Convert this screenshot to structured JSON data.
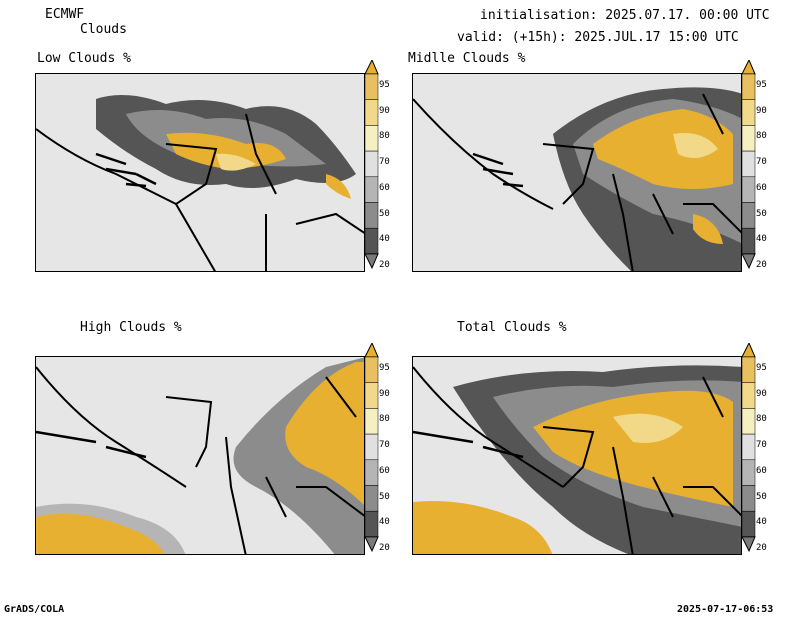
{
  "header": {
    "model": "ECMWF",
    "field": "Clouds",
    "init": "initialisation: 2025.07.17. 00:00 UTC",
    "valid": "valid: (+15h): 2025.JUL.17 15:00 UTC"
  },
  "panels": [
    {
      "title": "Low Clouds %"
    },
    {
      "title": "Midlle Clouds %"
    },
    {
      "title": "High Clouds %"
    },
    {
      "title": "Total Clouds %"
    }
  ],
  "colorbar": {
    "levels": [
      "20",
      "40",
      "50",
      "60",
      "70",
      "80",
      "90",
      "95"
    ],
    "colors": {
      "c20": "#7a7a7a",
      "c40": "#555555",
      "c50": "#8c8c8c",
      "c60": "#b5b5b5",
      "c70": "#e0e0e0",
      "c80": "#f5f0c0",
      "c90": "#f2d98a",
      "c95": "#e8c060",
      "c100": "#e8b030"
    }
  },
  "footer": {
    "left": "GrADS/COLA",
    "right": "2025-07-17-06:53"
  }
}
